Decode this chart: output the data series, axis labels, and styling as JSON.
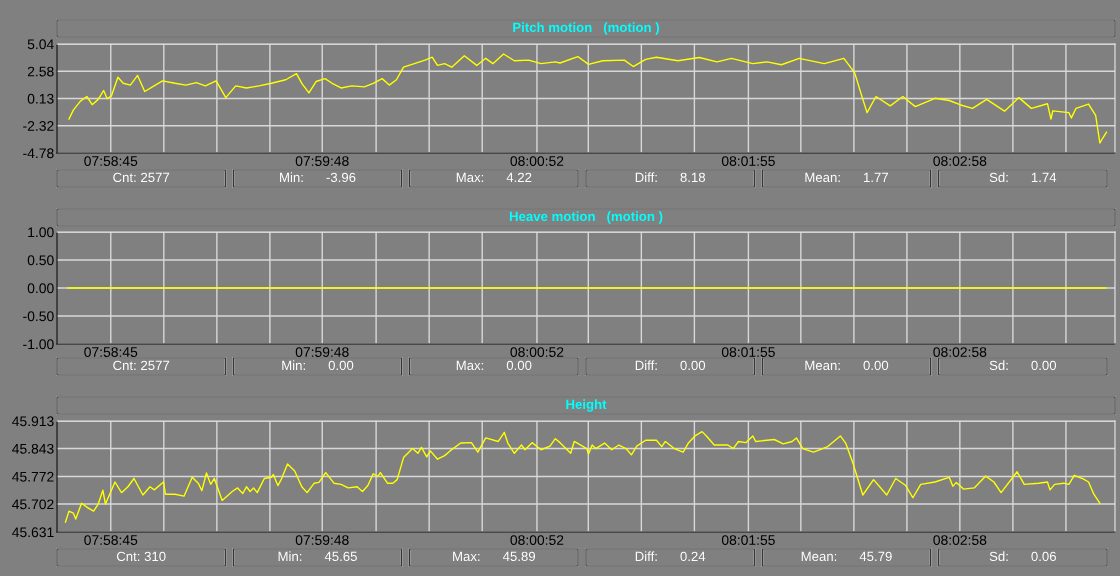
{
  "chart_data": [
    {
      "type": "line",
      "title": "Pitch motion   (motion )",
      "xlim": [
        7.97472,
        8.06228
      ],
      "xticks": [
        {
          "value": 7.97917,
          "label": "07:58:45"
        },
        {
          "value": 7.98356,
          "label": null
        },
        {
          "value": 7.98795,
          "label": null
        },
        {
          "value": 7.99234,
          "label": null
        },
        {
          "value": 7.99667,
          "label": "07:59:48"
        },
        {
          "value": 8.00113,
          "label": null
        },
        {
          "value": 8.00552,
          "label": null
        },
        {
          "value": 8.00991,
          "label": null
        },
        {
          "value": 8.01444,
          "label": "08:00:52"
        },
        {
          "value": 8.01869,
          "label": null
        },
        {
          "value": 8.02308,
          "label": null
        },
        {
          "value": 8.02747,
          "label": null
        },
        {
          "value": 8.03194,
          "label": "08:01:55"
        },
        {
          "value": 8.03628,
          "label": null
        },
        {
          "value": 8.04067,
          "label": null
        },
        {
          "value": 8.04506,
          "label": null
        },
        {
          "value": 8.04944,
          "label": "08:02:58"
        },
        {
          "value": 8.05383,
          "label": null
        },
        {
          "value": 8.05822,
          "label": null
        }
      ],
      "ylim": [
        -4.78,
        5.04
      ],
      "yticks": [
        -4.78,
        -2.32,
        0.13,
        2.58,
        5.04
      ],
      "grid": true,
      "series": [
        {
          "color": "#ffff00",
          "x": [
            7.97571,
            7.97607,
            7.97666,
            7.97719,
            7.97763,
            7.97813,
            7.97858,
            7.97887,
            7.97923,
            7.97976,
            7.9802,
            7.98079,
            7.98139,
            7.98198,
            7.98272,
            7.98345,
            7.98449,
            7.98538,
            7.98626,
            7.987,
            7.98789,
            7.98869,
            7.98951,
            7.9904,
            7.99143,
            7.99247,
            7.99365,
            7.99454,
            7.99498,
            7.99557,
            7.99616,
            7.9969,
            7.99749,
            7.99823,
            7.99912,
            8.00015,
            8.00089,
            8.00163,
            8.00222,
            8.00281,
            8.0034,
            8.00429,
            8.00518,
            8.00577,
            8.00621,
            8.0068,
            8.00739,
            8.00843,
            8.00946,
            8.0102,
            8.01079,
            8.01168,
            8.01257,
            8.01375,
            8.01478,
            8.01596,
            8.01635,
            8.01782,
            8.01871,
            8.01989,
            8.02167,
            8.02241,
            8.02344,
            8.02433,
            8.0261,
            8.02787,
            8.02935,
            8.03053,
            8.03231,
            8.03349,
            8.03467,
            8.03615,
            8.03822,
            8.03984,
            8.04073,
            8.04132,
            8.04176,
            8.0425,
            8.04368,
            8.04472,
            8.04575,
            8.04738,
            8.04856,
            8.04945,
            8.05048,
            8.05166,
            8.05314,
            8.05432,
            8.05536,
            8.05669,
            8.05698,
            8.05713,
            8.05846,
            8.05867,
            8.05905,
            8.06009,
            8.06068,
            8.06103,
            8.06127,
            8.06157
          ],
          "values": [
            -1.72,
            -0.92,
            -0.11,
            0.31,
            -0.43,
            0.05,
            0.85,
            0.11,
            0.37,
            2.05,
            1.5,
            1.34,
            2.21,
            0.76,
            1.24,
            1.72,
            1.5,
            1.34,
            1.56,
            1.27,
            1.72,
            0.21,
            1.27,
            1.08,
            1.27,
            1.5,
            1.82,
            2.37,
            1.5,
            0.63,
            1.66,
            1.92,
            1.5,
            1.08,
            1.27,
            1.18,
            1.5,
            1.92,
            1.34,
            1.82,
            2.95,
            3.27,
            3.59,
            3.85,
            3.11,
            3.27,
            2.95,
            3.98,
            3.11,
            3.75,
            3.27,
            4.14,
            3.53,
            3.59,
            3.27,
            3.43,
            3.33,
            3.91,
            3.2,
            3.53,
            3.59,
            3.01,
            3.66,
            3.85,
            3.53,
            3.82,
            3.43,
            3.75,
            3.27,
            3.43,
            3.17,
            3.75,
            3.27,
            3.75,
            2.46,
            0.37,
            -1.14,
            0.31,
            -0.53,
            0.31,
            -0.6,
            0.15,
            -0.05,
            -0.43,
            -0.76,
            0.05,
            -1.01,
            0.21,
            -0.76,
            -0.34,
            -1.72,
            -0.98,
            -1.14,
            -1.62,
            -0.76,
            -0.37,
            -1.4,
            -3.88,
            -3.43,
            -2.91
          ]
        }
      ],
      "annotations": [
        "Cnt: 2577",
        "Min:      -3.96",
        "Max:      4.22",
        "Diff:      8.18",
        "Mean:      1.77",
        "Sd:      1.74"
      ]
    },
    {
      "type": "line",
      "title": "Heave motion   (motion )",
      "xlim": [
        7.97472,
        8.06228
      ],
      "xticks": [
        {
          "value": 7.97917,
          "label": "07:58:45"
        },
        {
          "value": 7.98356,
          "label": null
        },
        {
          "value": 7.98795,
          "label": null
        },
        {
          "value": 7.99234,
          "label": null
        },
        {
          "value": 7.99667,
          "label": "07:59:48"
        },
        {
          "value": 8.00113,
          "label": null
        },
        {
          "value": 8.00552,
          "label": null
        },
        {
          "value": 8.00991,
          "label": null
        },
        {
          "value": 8.01444,
          "label": "08:00:52"
        },
        {
          "value": 8.01869,
          "label": null
        },
        {
          "value": 8.02308,
          "label": null
        },
        {
          "value": 8.02747,
          "label": null
        },
        {
          "value": 8.03194,
          "label": "08:01:55"
        },
        {
          "value": 8.03628,
          "label": null
        },
        {
          "value": 8.04067,
          "label": null
        },
        {
          "value": 8.04506,
          "label": null
        },
        {
          "value": 8.04944,
          "label": "08:02:58"
        },
        {
          "value": 8.05383,
          "label": null
        },
        {
          "value": 8.05822,
          "label": null
        }
      ],
      "ylim": [
        -1,
        1
      ],
      "yticks": [
        {
          "value": -1,
          "label": "-1.00"
        },
        {
          "value": -0.5,
          "label": "-0.50"
        },
        {
          "value": 0,
          "label": "0.00"
        },
        {
          "value": 0.5,
          "label": "0.50"
        },
        {
          "value": 1,
          "label": "1.00"
        }
      ],
      "grid": true,
      "series": [
        {
          "color": "#ffff00",
          "x": [
            7.97563,
            8.06153
          ],
          "values": [
            0,
            0
          ]
        }
      ],
      "annotations": [
        "Cnt: 2577",
        "Min:      0.00",
        "Max:      0.00",
        "Diff:      0.00",
        "Mean:      0.00",
        "Sd:      0.00"
      ]
    },
    {
      "type": "line",
      "title": "Height",
      "xlim": [
        7.97472,
        8.06228
      ],
      "xticks": [
        {
          "value": 7.97917,
          "label": "07:58:45"
        },
        {
          "value": 7.98356,
          "label": null
        },
        {
          "value": 7.98795,
          "label": null
        },
        {
          "value": 7.99234,
          "label": null
        },
        {
          "value": 7.99667,
          "label": "07:59:48"
        },
        {
          "value": 8.00113,
          "label": null
        },
        {
          "value": 8.00552,
          "label": null
        },
        {
          "value": 8.00991,
          "label": null
        },
        {
          "value": 8.01444,
          "label": "08:00:52"
        },
        {
          "value": 8.01869,
          "label": null
        },
        {
          "value": 8.02308,
          "label": null
        },
        {
          "value": 8.02747,
          "label": null
        },
        {
          "value": 8.03194,
          "label": "08:01:55"
        },
        {
          "value": 8.03628,
          "label": null
        },
        {
          "value": 8.04067,
          "label": null
        },
        {
          "value": 8.04506,
          "label": null
        },
        {
          "value": 8.04944,
          "label": "08:02:58"
        },
        {
          "value": 8.05383,
          "label": null
        },
        {
          "value": 8.05822,
          "label": null
        }
      ],
      "ylim": [
        45.631,
        45.913
      ],
      "yticks": [
        45.631,
        45.702,
        45.772,
        45.843,
        45.913
      ],
      "grid": true,
      "series": [
        {
          "color": "#ffff00",
          "x": [
            7.97542,
            7.97571,
            7.97607,
            7.97627,
            7.97675,
            7.97725,
            7.97775,
            7.97813,
            7.97852,
            7.97873,
            7.97952,
            7.98006,
            7.98059,
            7.98109,
            7.98183,
            7.98242,
            7.98277,
            7.98354,
            7.98369,
            7.98449,
            7.98523,
            7.98591,
            7.98641,
            7.98671,
            7.98709,
            7.98744,
            7.98774,
            7.98839,
            7.98922,
            7.98966,
            7.9901,
            7.9904,
            7.9907,
            7.99099,
            7.99129,
            7.99188,
            7.99247,
            7.99262,
            7.993,
            7.9933,
            7.9938,
            7.99439,
            7.99498,
            7.99542,
            7.99601,
            7.9964,
            7.99696,
            7.99764,
            7.99823,
            7.99882,
            7.99956,
            8.0,
            8.00045,
            8.00089,
            8.00128,
            8.00148,
            8.00207,
            8.00252,
            8.00287,
            8.0034,
            8.00414,
            8.00459,
            8.00488,
            8.00532,
            8.00562,
            8.00621,
            8.0068,
            8.00725,
            8.00813,
            8.00902,
            8.00955,
            8.0102,
            8.01124,
            8.01174,
            8.01203,
            8.01257,
            8.01316,
            8.01345,
            8.01404,
            8.01478,
            8.01552,
            8.01596,
            8.01635,
            8.01723,
            8.01753,
            8.01856,
            8.01871,
            8.01901,
            8.0193,
            8.02004,
            8.02063,
            8.02122,
            8.02181,
            8.02226,
            8.0227,
            8.02344,
            8.02433,
            8.02477,
            8.02507,
            8.0258,
            8.02654,
            8.02699,
            8.02752,
            8.02811,
            8.02852,
            8.02911,
            8.03024,
            8.03068,
            8.03112,
            8.03172,
            8.03231,
            8.03254,
            8.03408,
            8.03482,
            8.03556,
            8.03591,
            8.03644,
            8.03733,
            8.03851,
            8.03955,
            8.03999,
            8.04058,
            8.04141,
            8.0423,
            8.04339,
            8.04413,
            8.04496,
            8.04555,
            8.0462,
            8.04738,
            8.04856,
            8.04886,
            8.04915,
            8.04974,
            8.05063,
            8.05158,
            8.05226,
            8.05285,
            8.05418,
            8.05477,
            8.05595,
            8.05669,
            8.0569,
            8.05728,
            8.05802,
            8.05846,
            8.05891,
            8.05964,
            8.06009,
            8.06053,
            8.06103
          ],
          "values": [
            45.656,
            45.684,
            45.679,
            45.664,
            45.704,
            45.693,
            45.684,
            45.702,
            45.737,
            45.702,
            45.758,
            45.731,
            45.746,
            45.767,
            45.725,
            45.746,
            45.738,
            45.758,
            45.727,
            45.727,
            45.722,
            45.77,
            45.755,
            45.736,
            45.781,
            45.752,
            45.767,
            45.711,
            45.734,
            45.743,
            45.729,
            45.746,
            45.734,
            45.743,
            45.731,
            45.767,
            45.77,
            45.777,
            45.749,
            45.766,
            45.804,
            45.786,
            45.746,
            45.731,
            45.755,
            45.757,
            45.782,
            45.755,
            45.752,
            45.743,
            45.746,
            45.734,
            45.749,
            45.779,
            45.772,
            45.782,
            45.755,
            45.755,
            45.764,
            45.82,
            45.843,
            45.831,
            45.846,
            45.822,
            45.837,
            45.816,
            45.825,
            45.837,
            45.857,
            45.858,
            45.834,
            45.87,
            45.861,
            45.884,
            45.857,
            45.831,
            45.852,
            45.84,
            45.858,
            45.84,
            45.849,
            45.868,
            45.858,
            45.831,
            45.861,
            45.843,
            45.829,
            45.852,
            45.843,
            45.857,
            45.84,
            45.852,
            45.843,
            45.827,
            45.849,
            45.864,
            45.864,
            45.848,
            45.861,
            45.843,
            45.834,
            45.858,
            45.875,
            45.886,
            45.873,
            45.852,
            45.852,
            45.843,
            45.861,
            45.858,
            45.875,
            45.861,
            45.866,
            45.855,
            45.861,
            45.87,
            45.843,
            45.834,
            45.848,
            45.875,
            45.857,
            45.807,
            45.725,
            45.764,
            45.725,
            45.767,
            45.749,
            45.718,
            45.752,
            45.758,
            45.77,
            45.747,
            45.757,
            45.74,
            45.743,
            45.773,
            45.758,
            45.731,
            45.784,
            45.752,
            45.755,
            45.758,
            45.738,
            45.752,
            45.755,
            45.752,
            45.775,
            45.766,
            45.758,
            45.727,
            45.704
          ]
        }
      ],
      "annotations": [
        "Cnt: 310",
        "Min:      45.65",
        "Max:      45.89",
        "Diff:      0.24",
        "Mean:      45.79",
        "Sd:      0.06"
      ]
    }
  ]
}
